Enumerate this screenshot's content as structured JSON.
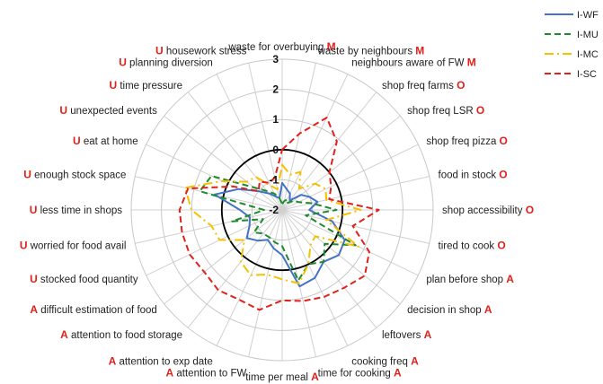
{
  "chart_data": {
    "type": "radar",
    "title": "",
    "r_ticks": [
      "-2",
      "-1",
      "0",
      "1",
      "2",
      "3"
    ],
    "rlim": [
      -2,
      3
    ],
    "grid": true,
    "legend_position": "top-right",
    "axes": [
      {
        "label": "waste for overbuying",
        "tag": "M"
      },
      {
        "label": "waste by neighbours",
        "tag": "M"
      },
      {
        "label": "neighbours aware of FW",
        "tag": "M"
      },
      {
        "label": "shop freq farms",
        "tag": "O"
      },
      {
        "label": "shop freq LSR",
        "tag": "O"
      },
      {
        "label": "shop freq pizza",
        "tag": "O"
      },
      {
        "label": "food in stock",
        "tag": "O"
      },
      {
        "label": "shop accessibility",
        "tag": "O"
      },
      {
        "label": "tired to cook",
        "tag": "O"
      },
      {
        "label": "plan before shop",
        "tag": "A"
      },
      {
        "label": "decision in shop",
        "tag": "A"
      },
      {
        "label": "leftovers",
        "tag": "A"
      },
      {
        "label": "cooking freq",
        "tag": "A"
      },
      {
        "label": "time for cooking",
        "tag": "A"
      },
      {
        "label": "time per meal",
        "tag": "A"
      },
      {
        "label": "attention to FW",
        "tag": "A"
      },
      {
        "label": "attention to exp date",
        "tag": "A"
      },
      {
        "label": "attention to food storage",
        "tag": "A"
      },
      {
        "label": "difficult estimation of food",
        "tag": "A"
      },
      {
        "label": "stocked food quantity",
        "tag": "U"
      },
      {
        "label": "worried for food avail",
        "tag": "U"
      },
      {
        "label": "less time in shops",
        "tag": "U"
      },
      {
        "label": "enough stock space",
        "tag": "U"
      },
      {
        "label": "eat at home",
        "tag": "U"
      },
      {
        "label": "unexpected events",
        "tag": "U"
      },
      {
        "label": "time pressure",
        "tag": "U"
      },
      {
        "label": "planning diversion",
        "tag": "U"
      },
      {
        "label": "housework stress",
        "tag": "U"
      }
    ],
    "series": [
      {
        "name": "I-WF",
        "color": "#4472C4",
        "style": "solid",
        "values": [
          -1.1,
          -1.3,
          -1.4,
          -1.6,
          -1.2,
          -1.0,
          -0.8,
          -1.1,
          -0.3,
          0.3,
          0.4,
          0.2,
          0.5,
          0.6,
          -0.5,
          -0.7,
          -0.9,
          -0.7,
          -0.5,
          -0.8,
          -0.9,
          -0.6,
          0.3,
          -0.4,
          -1.0,
          -1.3,
          -1.5,
          -1.6
        ]
      },
      {
        "name": "I-MU",
        "color": "#1E8A2E",
        "style": "dashed",
        "values": [
          -1.8,
          -1.7,
          -1.6,
          -1.7,
          -1.5,
          -1.4,
          -1.0,
          -0.2,
          -1.2,
          0.7,
          -0.2,
          0.2,
          0.0,
          0.4,
          -0.8,
          -0.9,
          -1.0,
          -1.0,
          -0.8,
          -1.3,
          -0.3,
          -1.4,
          0.8,
          0.6,
          -0.8,
          -1.2,
          -1.4,
          -1.6
        ]
      },
      {
        "name": "I-MC",
        "color": "#F5C000",
        "style": "dashdot",
        "values": [
          -0.5,
          -0.8,
          -0.6,
          -1.1,
          -0.6,
          -0.4,
          -0.5,
          0.6,
          -0.5,
          0.8,
          -0.6,
          -0.5,
          0.0,
          0.5,
          0.3,
          0.2,
          0.4,
          0.2,
          -0.4,
          0.3,
          0.4,
          1.0,
          1.3,
          0.2,
          -0.5,
          -0.6,
          -1.1,
          -1.3
        ]
      },
      {
        "name": "I-SC",
        "color": "#E0201B",
        "style": "dashed",
        "values": [
          0.0,
          0.6,
          1.4,
          0.9,
          0.0,
          -0.2,
          -0.4,
          1.2,
          0.4,
          1.2,
          1.5,
          1.3,
          1.2,
          1.1,
          1.0,
          1.4,
          1.3,
          1.4,
          1.3,
          1.4,
          1.4,
          1.4,
          1.2,
          -0.2,
          -1.0,
          -0.8,
          -1.0,
          -0.9
        ]
      }
    ]
  }
}
